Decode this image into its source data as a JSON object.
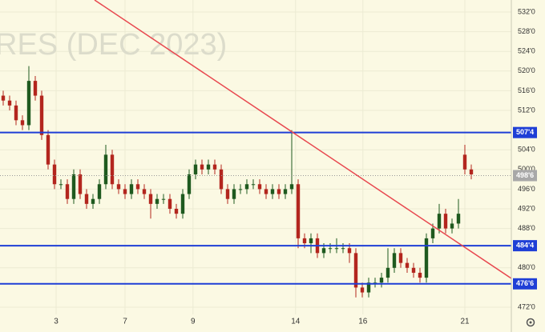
{
  "chart_data": {
    "type": "candlestick",
    "watermark": "RES (DEC 2023)",
    "up_color": "#1f5a1f",
    "down_color": "#b3261e",
    "grid": true,
    "xlim": [
      -0.5,
      79.25
    ],
    "ylim": [
      466.96,
      534.44
    ],
    "xticks": [
      {
        "value": 8.25,
        "label": "3"
      },
      {
        "value": 19,
        "label": "7"
      },
      {
        "value": 29.6,
        "label": "9"
      },
      {
        "value": 45.6,
        "label": "14"
      },
      {
        "value": 56.1,
        "label": "16"
      },
      {
        "value": 72,
        "label": "21"
      }
    ],
    "yticks": [
      {
        "value": 532,
        "label": "532'0"
      },
      {
        "value": 528,
        "label": "528'0"
      },
      {
        "value": 524,
        "label": "524'0"
      },
      {
        "value": 520,
        "label": "520'0"
      },
      {
        "value": 516,
        "label": "516'0"
      },
      {
        "value": 512,
        "label": "512'0"
      },
      {
        "value": 504,
        "label": "504'0"
      },
      {
        "value": 500,
        "label": "500'0"
      },
      {
        "value": 496,
        "label": "496'0"
      },
      {
        "value": 492,
        "label": "492'0"
      },
      {
        "value": 488,
        "label": "488'0"
      },
      {
        "value": 480,
        "label": "480'0"
      },
      {
        "value": 472,
        "label": "472'0"
      }
    ],
    "open": [
      515,
      514,
      513,
      510,
      509,
      518,
      515,
      507,
      501,
      497,
      497,
      494,
      499,
      495,
      493,
      494,
      497,
      503,
      497,
      496,
      495,
      497,
      496,
      495,
      493,
      494,
      494,
      492,
      491,
      495,
      499,
      501,
      500,
      501,
      500,
      496,
      494,
      496,
      496,
      497,
      497,
      496,
      495,
      496,
      495,
      496,
      497,
      486,
      485,
      486,
      483,
      484,
      484,
      484,
      484,
      483,
      476,
      475,
      477,
      477,
      478,
      480,
      483,
      481,
      480,
      479,
      478,
      486,
      488,
      491,
      488,
      489,
      503,
      500
    ],
    "high": [
      516,
      515,
      514,
      511,
      521,
      519,
      516,
      508,
      502,
      498,
      498,
      500,
      500,
      496,
      495,
      498,
      505,
      504,
      498,
      497,
      498,
      498,
      497,
      496,
      495,
      495,
      495,
      493,
      496,
      500,
      502,
      502,
      502,
      502,
      501,
      497,
      497,
      497,
      498,
      498,
      498,
      497,
      497,
      497,
      497,
      508,
      498,
      487,
      487,
      487,
      485,
      485,
      486,
      485,
      485,
      484,
      477,
      478,
      478,
      479,
      484,
      484,
      484,
      482,
      481,
      480,
      487,
      489,
      493,
      492,
      490,
      494,
      505,
      501
    ],
    "low": [
      513,
      512,
      509,
      508,
      508,
      514,
      506,
      500,
      496,
      496,
      493,
      493,
      494,
      492,
      492,
      493,
      496,
      496,
      495,
      494,
      494,
      495,
      494,
      490,
      492,
      493,
      491,
      490,
      490,
      494,
      498,
      499,
      499,
      499,
      495,
      493,
      493,
      495,
      495,
      496,
      495,
      494,
      494,
      494,
      494,
      495,
      484,
      484,
      483,
      482,
      482,
      483,
      483,
      483,
      481,
      474,
      474,
      474,
      476,
      476,
      477,
      479,
      480,
      479,
      478,
      477,
      477,
      485,
      487,
      487,
      487,
      488,
      499,
      498
    ],
    "close": [
      514,
      513,
      510,
      509,
      518,
      515,
      507,
      501,
      497,
      497,
      494,
      499,
      495,
      493,
      494,
      497,
      503,
      497,
      496,
      495,
      497,
      496,
      495,
      493,
      494,
      494,
      492,
      491,
      495,
      499,
      501,
      500,
      501,
      500,
      496,
      494,
      496,
      496,
      497,
      497,
      496,
      495,
      496,
      495,
      496,
      497,
      486,
      485,
      486,
      483,
      484,
      484,
      484,
      484,
      483,
      476,
      475,
      477,
      477,
      478,
      480,
      483,
      481,
      480,
      479,
      478,
      486,
      488,
      491,
      488,
      489,
      491,
      500,
      499
    ],
    "levels": [
      {
        "value": 507.5,
        "label": "507'4"
      },
      {
        "value": 484.5,
        "label": "484'4"
      },
      {
        "value": 476.75,
        "label": "476'6"
      }
    ],
    "level_color": "#1f3fd6",
    "last_price": {
      "value": 498.75,
      "label": "498'6"
    },
    "trendline": {
      "x": [
        14.25,
        79.25
      ],
      "y": [
        534.44,
        477.85
      ],
      "color": "#e8484f"
    }
  }
}
